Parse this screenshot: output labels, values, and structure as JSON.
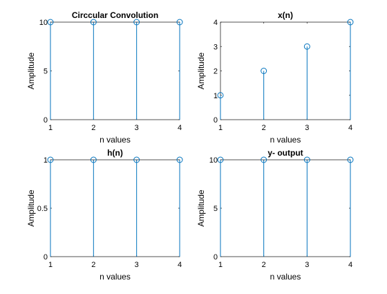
{
  "figure": {
    "background": "#ffffff",
    "stem_color": "#0072bd",
    "axis_color": "#262626"
  },
  "chart_data": [
    {
      "type": "stem",
      "title": "Circcular Convolution",
      "xlabel": "n values",
      "ylabel": "Amplitude",
      "x": [
        1,
        2,
        3,
        4
      ],
      "y": [
        10,
        10,
        10,
        10
      ],
      "xlim": [
        1,
        4
      ],
      "ylim": [
        0,
        10
      ],
      "xticks": [
        "1",
        "2",
        "3",
        "4"
      ],
      "yticks": [
        "0",
        "5",
        "10"
      ],
      "ytick_values": [
        0,
        5,
        10
      ],
      "grid": false
    },
    {
      "type": "stem",
      "title": "x(n)",
      "xlabel": "n values",
      "ylabel": "Amplitude",
      "x": [
        1,
        2,
        3,
        4
      ],
      "y": [
        1,
        2,
        3,
        4
      ],
      "xlim": [
        1,
        4
      ],
      "ylim": [
        0,
        4
      ],
      "xticks": [
        "1",
        "2",
        "3",
        "4"
      ],
      "yticks": [
        "0",
        "1",
        "2",
        "3",
        "4"
      ],
      "ytick_values": [
        0,
        1,
        2,
        3,
        4
      ],
      "grid": false
    },
    {
      "type": "stem",
      "title": "h(n)",
      "xlabel": "n values",
      "ylabel": "Amplitude",
      "x": [
        1,
        2,
        3,
        4
      ],
      "y": [
        1,
        1,
        1,
        1
      ],
      "xlim": [
        1,
        4
      ],
      "ylim": [
        0,
        1
      ],
      "xticks": [
        "1",
        "2",
        "3",
        "4"
      ],
      "yticks": [
        "0",
        "0.5",
        "1"
      ],
      "ytick_values": [
        0,
        0.5,
        1
      ],
      "grid": false
    },
    {
      "type": "stem",
      "title": "y- output",
      "xlabel": "n values",
      "ylabel": "Amplitude",
      "x": [
        1,
        2,
        3,
        4
      ],
      "y": [
        10,
        10,
        10,
        10
      ],
      "xlim": [
        1,
        4
      ],
      "ylim": [
        0,
        10
      ],
      "xticks": [
        "1",
        "2",
        "3",
        "4"
      ],
      "yticks": [
        "0",
        "5",
        "10"
      ],
      "ytick_values": [
        0,
        5,
        10
      ],
      "grid": false
    }
  ]
}
